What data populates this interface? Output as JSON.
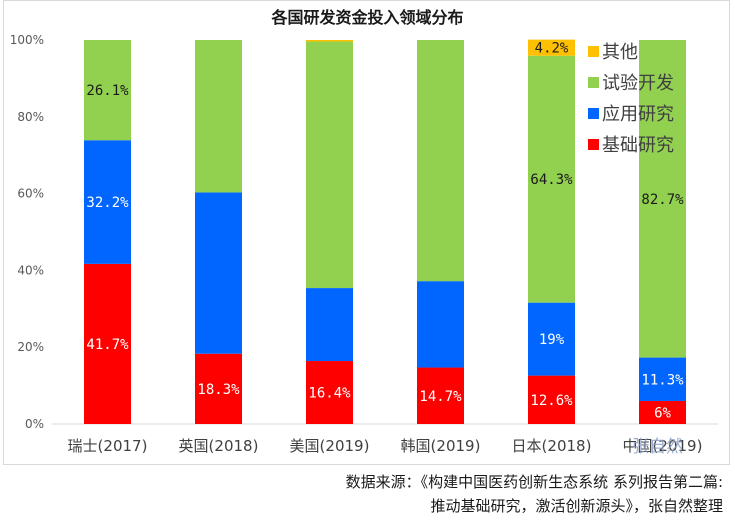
{
  "chart_data": {
    "type": "bar",
    "stacked": true,
    "title": "各国研发资金投入领域分布",
    "categories": [
      "瑞士(2017)",
      "英国(2018)",
      "美国(2019)",
      "韩国(2019)",
      "日本(2018)",
      "中国(2019)"
    ],
    "series": [
      {
        "name": "基础研究",
        "color": "#ff0000",
        "values": [
          41.7,
          18.3,
          16.4,
          14.7,
          12.6,
          6.0
        ],
        "labels": [
          "41.7%",
          "18.3%",
          "16.4%",
          "14.7%",
          "12.6%",
          "6%"
        ],
        "label_color": "#ffffff"
      },
      {
        "name": "应用研究",
        "color": "#0066ff",
        "values": [
          32.2,
          42.0,
          19.0,
          22.5,
          19.0,
          11.3
        ],
        "labels": [
          "32.2%",
          "",
          "",
          "",
          "19%",
          "11.3%"
        ],
        "label_color": "#ffffff"
      },
      {
        "name": "试验开发",
        "color": "#92d050",
        "values": [
          26.1,
          39.7,
          64.2,
          62.8,
          64.3,
          82.7
        ],
        "labels": [
          "26.1%",
          "",
          "",
          "",
          "64.3%",
          "82.7%"
        ],
        "label_color": "#1a1a1a"
      },
      {
        "name": "其他",
        "color": "#ffc000",
        "values": [
          0,
          0,
          0.4,
          0,
          4.2,
          0
        ],
        "labels": [
          "",
          "",
          "",
          "",
          "4.2%",
          ""
        ],
        "label_color": "#1a1a1a"
      }
    ],
    "ylim": [
      0,
      100
    ],
    "yticks": [
      0,
      20,
      40,
      60,
      80,
      100
    ],
    "ytick_labels": [
      "0%",
      "20%",
      "40%",
      "60%",
      "80%",
      "100%"
    ],
    "legend_order": [
      "其他",
      "试验开发",
      "应用研究",
      "基础研究"
    ],
    "legend_position": "top-right",
    "grid": false
  },
  "watermark": "张自然",
  "source_note": {
    "line1": "数据来源：《构建中国医药创新生态系统 系列报告第二篇:",
    "line2": "推动基础研究，激活创新源头》，张自然整理"
  }
}
